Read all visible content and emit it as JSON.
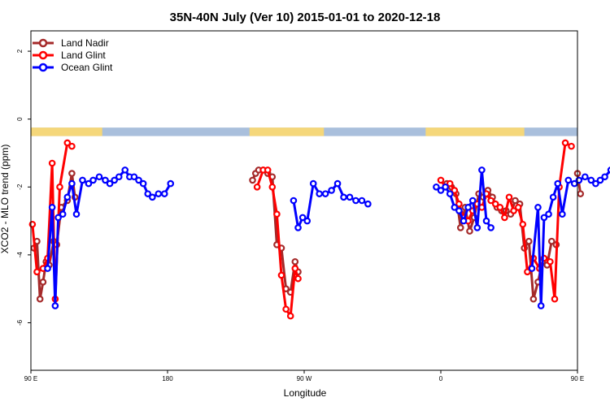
{
  "chart_data": {
    "type": "line",
    "title": "35N-40N July (Ver 10)   2015-01-01 to 2020-12-18",
    "xlabel": "Longitude",
    "ylabel": "XCO2 - MLO trend (ppm)",
    "xlim": [
      90,
      450
    ],
    "ylim": [
      -7.4,
      2.6
    ],
    "x_ticks": [
      {
        "value": 90,
        "label": "90 E"
      },
      {
        "value": 180,
        "label": "180"
      },
      {
        "value": 270,
        "label": "90 W"
      },
      {
        "value": 360,
        "label": "0"
      },
      {
        "value": 450,
        "label": "90 E"
      },
      {
        "value": 540,
        "label": "180"
      }
    ],
    "y_ticks": [
      {
        "value": 2,
        "label": "2"
      },
      {
        "value": 0,
        "label": "0"
      },
      {
        "value": -2,
        "label": "-2"
      },
      {
        "value": -4,
        "label": "-4"
      },
      {
        "value": -6,
        "label": "-6"
      }
    ],
    "legend": {
      "position": "top-left"
    },
    "grid": false,
    "land_band": {
      "y_range": [
        -0.5,
        -0.25
      ],
      "land_color": "#f5d77a",
      "ocean_color": "#a9bfdc",
      "land_segments": [
        [
          90,
          137
        ],
        [
          234,
          283
        ],
        [
          350,
          415
        ],
        [
          450,
          497
        ]
      ]
    },
    "series": [
      {
        "name": "Land Nadir",
        "color": "#a52a2a",
        "segments": [
          [
            [
              92,
              -3.8
            ],
            [
              94,
              -3.6
            ],
            [
              96,
              -5.3
            ],
            [
              98,
              -4.8
            ],
            [
              100,
              -4.2
            ],
            [
              102,
              -4.3
            ],
            [
              105,
              -3.6
            ],
            [
              107,
              -3.7
            ],
            [
              110,
              -2.6
            ],
            [
              114,
              -2.4
            ],
            [
              117,
              -1.6
            ],
            [
              119,
              -2.3
            ]
          ],
          [
            [
              236,
              -1.8
            ],
            [
              238,
              -1.6
            ],
            [
              240,
              -1.5
            ],
            [
              243,
              -1.5
            ],
            [
              246,
              -1.6
            ],
            [
              249,
              -1.7
            ],
            [
              252,
              -3.7
            ],
            [
              255,
              -3.8
            ],
            [
              258,
              -5.0
            ],
            [
              261,
              -5.1
            ],
            [
              264,
              -4.2
            ],
            [
              266,
              -4.5
            ]
          ],
          [
            [
              364,
              -1.9
            ],
            [
              367,
              -2.0
            ],
            [
              370,
              -2.2
            ],
            [
              373,
              -3.2
            ],
            [
              376,
              -2.6
            ],
            [
              379,
              -3.3
            ],
            [
              382,
              -2.9
            ],
            [
              385,
              -2.2
            ],
            [
              388,
              -2.3
            ],
            [
              391,
              -2.1
            ],
            [
              394,
              -2.3
            ],
            [
              397,
              -2.6
            ],
            [
              400,
              -2.7
            ],
            [
              403,
              -2.7
            ],
            [
              406,
              -2.8
            ],
            [
              409,
              -2.4
            ],
            [
              412,
              -2.5
            ],
            [
              415,
              -3.8
            ],
            [
              418,
              -3.6
            ],
            [
              421,
              -5.3
            ],
            [
              424,
              -4.8
            ],
            [
              427,
              -4.2
            ],
            [
              430,
              -4.3
            ],
            [
              433,
              -3.6
            ],
            [
              436,
              -3.7
            ]
          ],
          [
            [
              450,
              -1.6
            ],
            [
              452,
              -2.2
            ]
          ]
        ]
      },
      {
        "name": "Land Glint",
        "color": "#ff0000",
        "segments": [
          [
            [
              91,
              -3.1
            ],
            [
              94,
              -4.5
            ],
            [
              98,
              -4.4
            ],
            [
              101,
              -4.1
            ],
            [
              104,
              -1.3
            ],
            [
              106,
              -5.3
            ],
            [
              109,
              -2.0
            ],
            [
              114,
              -0.7
            ],
            [
              117,
              -0.8
            ]
          ],
          [
            [
              239,
              -2.0
            ],
            [
              243,
              -1.5
            ],
            [
              246,
              -1.5
            ],
            [
              249,
              -2.0
            ],
            [
              252,
              -2.8
            ],
            [
              255,
              -4.6
            ],
            [
              258,
              -5.6
            ],
            [
              261,
              -5.8
            ],
            [
              264,
              -4.4
            ],
            [
              266,
              -4.7
            ]
          ],
          [
            [
              360,
              -1.8
            ],
            [
              363,
              -2.0
            ],
            [
              366,
              -1.9
            ],
            [
              369,
              -2.1
            ],
            [
              372,
              -2.5
            ],
            [
              375,
              -2.9
            ],
            [
              378,
              -3.0
            ],
            [
              381,
              -2.7
            ],
            [
              384,
              -2.5
            ],
            [
              387,
              -2.6
            ],
            [
              390,
              -2.2
            ],
            [
              393,
              -2.4
            ],
            [
              396,
              -2.5
            ],
            [
              399,
              -2.6
            ],
            [
              402,
              -2.9
            ],
            [
              405,
              -2.3
            ],
            [
              408,
              -2.7
            ],
            [
              411,
              -2.6
            ],
            [
              414,
              -3.1
            ],
            [
              417,
              -4.5
            ],
            [
              421,
              -4.1
            ],
            [
              425,
              -4.4
            ],
            [
              428,
              -4.1
            ],
            [
              432,
              -4.2
            ],
            [
              435,
              -5.3
            ],
            [
              438,
              -2.0
            ],
            [
              442,
              -0.7
            ],
            [
              446,
              -0.8
            ]
          ]
        ]
      },
      {
        "name": "Ocean Glint",
        "color": "#0000ff",
        "segments": [
          [
            [
              101,
              -4.4
            ],
            [
              104,
              -2.6
            ],
            [
              106,
              -5.5
            ],
            [
              108,
              -2.9
            ],
            [
              111,
              -2.8
            ],
            [
              114,
              -2.3
            ],
            [
              117,
              -1.9
            ],
            [
              120,
              -2.8
            ],
            [
              124,
              -1.8
            ],
            [
              128,
              -1.9
            ],
            [
              131,
              -1.8
            ],
            [
              135,
              -1.7
            ],
            [
              139,
              -1.8
            ],
            [
              142,
              -1.9
            ],
            [
              145,
              -1.8
            ],
            [
              148,
              -1.7
            ],
            [
              152,
              -1.5
            ],
            [
              155,
              -1.7
            ],
            [
              158,
              -1.7
            ],
            [
              161,
              -1.8
            ],
            [
              164,
              -1.9
            ],
            [
              167,
              -2.2
            ],
            [
              170,
              -2.3
            ],
            [
              174,
              -2.2
            ],
            [
              178,
              -2.2
            ],
            [
              182,
              -1.9
            ]
          ],
          [
            [
              263,
              -2.4
            ],
            [
              266,
              -3.2
            ],
            [
              269,
              -2.9
            ],
            [
              272,
              -3.0
            ],
            [
              276,
              -1.9
            ],
            [
              280,
              -2.2
            ],
            [
              284,
              -2.2
            ],
            [
              288,
              -2.1
            ],
            [
              292,
              -1.9
            ],
            [
              296,
              -2.3
            ],
            [
              300,
              -2.3
            ],
            [
              304,
              -2.4
            ],
            [
              308,
              -2.4
            ],
            [
              312,
              -2.5
            ]
          ],
          [
            [
              357,
              -2.0
            ],
            [
              360,
              -2.1
            ],
            [
              363,
              -2.0
            ],
            [
              366,
              -2.2
            ],
            [
              369,
              -2.6
            ],
            [
              372,
              -2.7
            ],
            [
              375,
              -3.0
            ],
            [
              378,
              -2.6
            ],
            [
              381,
              -2.4
            ],
            [
              384,
              -3.2
            ],
            [
              387,
              -1.5
            ],
            [
              390,
              -3.0
            ],
            [
              393,
              -3.2
            ]
          ],
          [
            [
              420,
              -4.4
            ],
            [
              424,
              -2.6
            ],
            [
              426,
              -5.5
            ],
            [
              428,
              -2.9
            ],
            [
              431,
              -2.8
            ],
            [
              434,
              -2.3
            ],
            [
              437,
              -1.9
            ],
            [
              440,
              -2.8
            ],
            [
              444,
              -1.8
            ],
            [
              448,
              -1.9
            ],
            [
              451,
              -1.8
            ],
            [
              455,
              -1.7
            ],
            [
              459,
              -1.8
            ],
            [
              462,
              -1.9
            ],
            [
              465,
              -1.8
            ],
            [
              468,
              -1.7
            ],
            [
              472,
              -1.5
            ],
            [
              475,
              -1.7
            ]
          ]
        ]
      }
    ]
  }
}
